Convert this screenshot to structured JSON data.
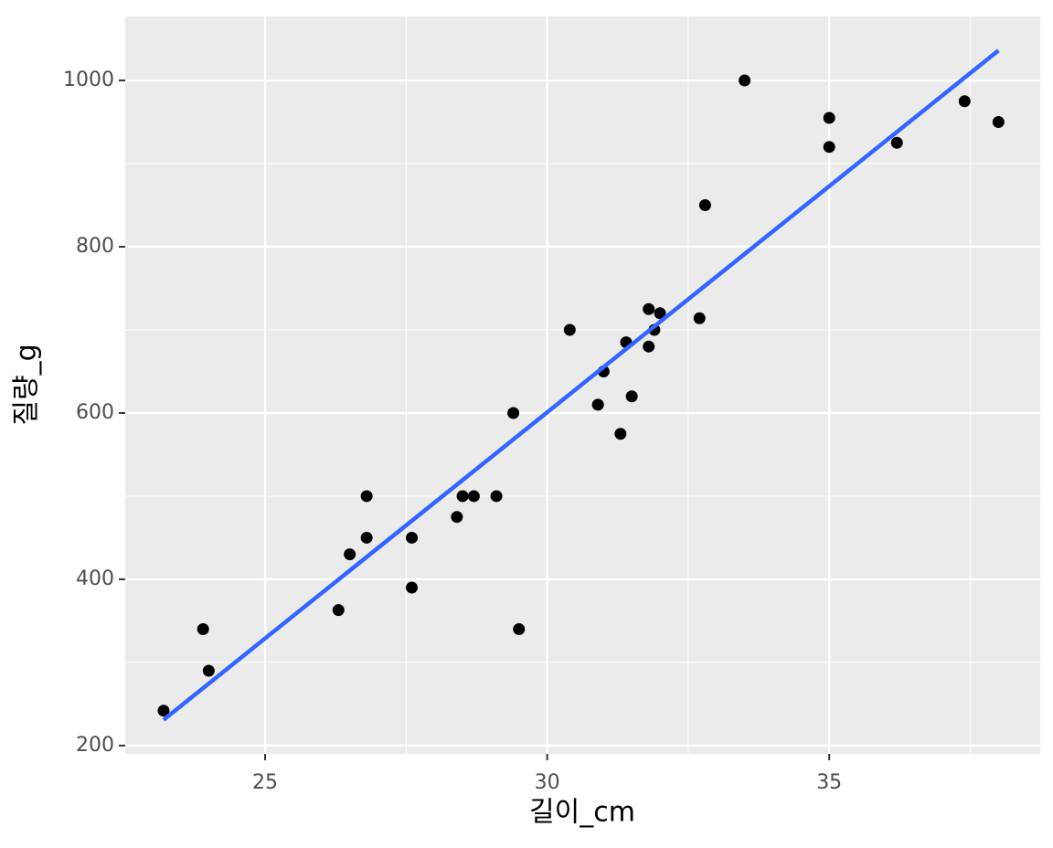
{
  "chart_data": {
    "type": "scatter",
    "x_label": "길이_cm",
    "y_label": "질량_g",
    "series": [
      {
        "color": "#000000",
        "x": [
          23.2,
          23.9,
          24.0,
          26.3,
          26.5,
          26.8,
          26.8,
          27.6,
          27.6,
          28.4,
          28.5,
          28.7,
          29.1,
          29.4,
          29.5,
          30.4,
          30.9,
          31.0,
          31.3,
          31.4,
          31.5,
          31.8,
          31.8,
          31.9,
          32.0,
          32.7,
          32.8,
          33.5,
          35.0,
          35.0,
          36.2,
          37.4,
          38.0
        ],
        "values": [
          242,
          340,
          290,
          363,
          430,
          500,
          450,
          450,
          390,
          475,
          500,
          500,
          500,
          600,
          340,
          700,
          610,
          650,
          575,
          685,
          620,
          725,
          680,
          700,
          720,
          714,
          850,
          1000,
          955,
          920,
          925,
          975,
          950
        ]
      }
    ],
    "fit_line": {
      "color": "#3366ff",
      "x": [
        23.2,
        38.0
      ],
      "values": [
        231,
        1036
      ]
    },
    "xlim": [
      22.52,
      38.74
    ],
    "xticks": [
      25,
      30,
      35
    ],
    "x_minor_ticks": [
      22.5,
      27.5,
      32.5,
      37.5
    ],
    "ylim": [
      190,
      1077
    ],
    "yticks": [
      200,
      400,
      600,
      800,
      1000
    ],
    "y_minor_ticks": [
      300,
      500,
      700,
      900
    ],
    "grid": true
  }
}
